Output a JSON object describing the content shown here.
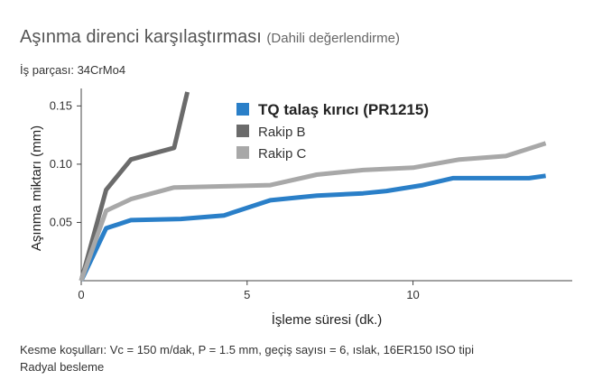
{
  "header": {
    "title": "Aşınma direnci karşılaştırması",
    "subtitle": "(Dahili değerlendirme)",
    "workpiece": "İş parçası: 34CrMo4"
  },
  "footer": {
    "line1": "Kesme koşulları: Vc = 150 m/dak, P = 1.5 mm, geçiş sayısı = 6, ıslak, 16ER150 ISO tipi",
    "line2": "Radyal besleme"
  },
  "chart_data": {
    "type": "line",
    "xlabel": "İşleme süresi (dk.)",
    "ylabel": "Aşınma miktarı (mm)",
    "xlim": [
      0,
      14.8
    ],
    "ylim": [
      0,
      0.165
    ],
    "xticks": [
      0,
      5,
      10
    ],
    "xtick_labels": [
      "0",
      "5",
      "10"
    ],
    "yticks": [
      0.05,
      0.1,
      0.15
    ],
    "ytick_labels": [
      "0.05",
      "0.10",
      "0.15"
    ],
    "grid": false,
    "legend_position": "top-center",
    "series": [
      {
        "name": "TQ talaş kırıcı (PR1215)",
        "color": "#2a7fc8",
        "bold": true,
        "x": [
          0,
          0.75,
          1.5,
          3.0,
          4.3,
          5.7,
          7.1,
          8.5,
          9.2,
          10.3,
          11.2,
          12.3,
          13.5,
          14.0
        ],
        "y": [
          0,
          0.045,
          0.052,
          0.053,
          0.056,
          0.069,
          0.073,
          0.075,
          0.077,
          0.082,
          0.088,
          0.088,
          0.088,
          0.09
        ]
      },
      {
        "name": "Rakip B",
        "color": "#6b6b6b",
        "bold": false,
        "x": [
          0,
          0.75,
          1.5,
          2.8,
          3.2
        ],
        "y": [
          0,
          0.078,
          0.104,
          0.114,
          0.162
        ]
      },
      {
        "name": "Rakip C",
        "color": "#a8a8a8",
        "bold": false,
        "x": [
          0,
          0.75,
          1.5,
          2.8,
          4.3,
          5.7,
          7.1,
          8.5,
          10.0,
          11.4,
          12.8,
          14.0
        ],
        "y": [
          0,
          0.06,
          0.07,
          0.08,
          0.081,
          0.082,
          0.091,
          0.095,
          0.097,
          0.104,
          0.107,
          0.118
        ]
      }
    ]
  }
}
